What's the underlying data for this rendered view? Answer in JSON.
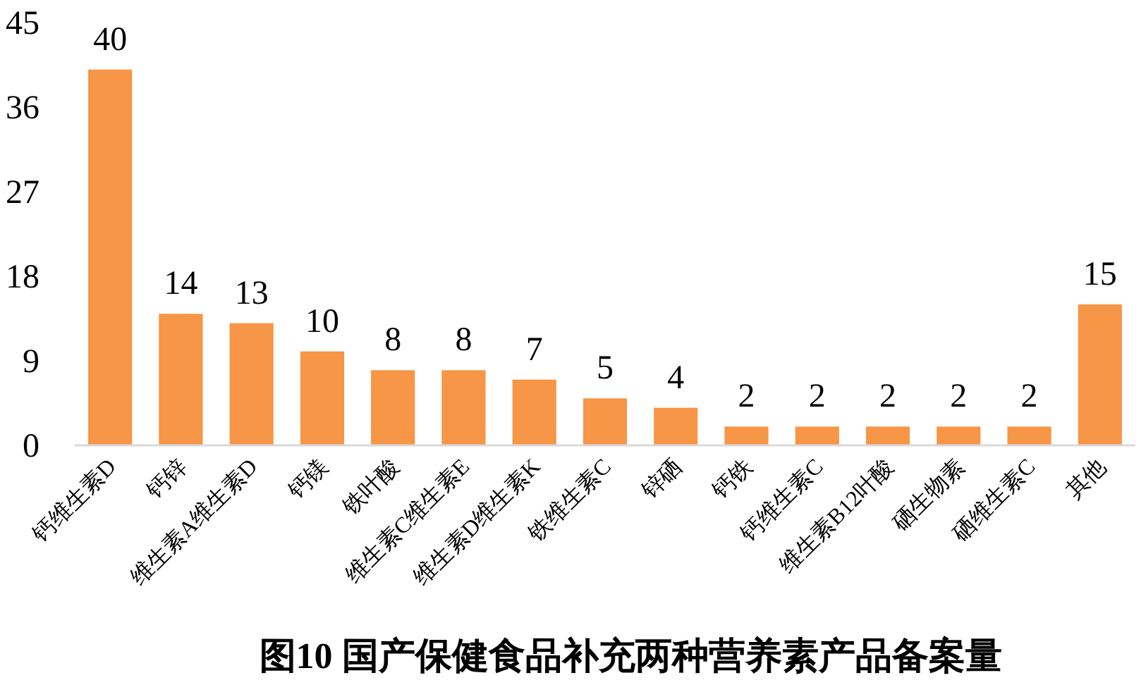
{
  "chart_data": {
    "type": "bar",
    "title": "图10 国产保健食品补充两种营养素产品备案量",
    "categories": [
      "钙维生素D",
      "钙锌",
      "维生素A维生素D",
      "钙镁",
      "铁叶酸",
      "维生素C维生素E",
      "维生素D维生素K",
      "铁维生素C",
      "锌硒",
      "钙铁",
      "钙维生素C",
      "维生素B12叶酸",
      "硒生物素",
      "硒维生素C",
      "其他"
    ],
    "values": [
      40,
      14,
      13,
      10,
      8,
      8,
      7,
      5,
      4,
      2,
      2,
      2,
      2,
      2,
      15
    ],
    "color": "#f79646",
    "ylim": [
      0,
      45
    ],
    "yticks": [
      0,
      9,
      18,
      27,
      36,
      45
    ],
    "data_labels": true
  }
}
